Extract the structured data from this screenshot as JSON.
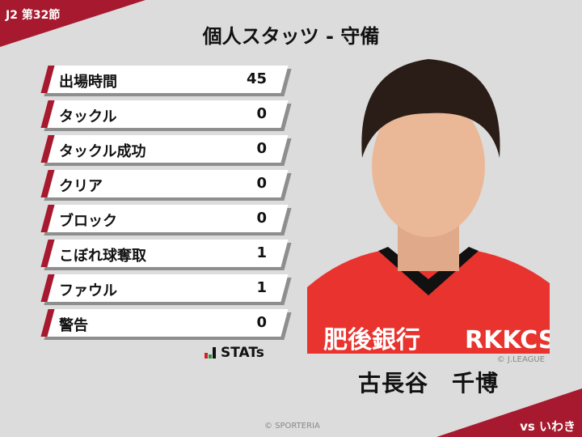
{
  "header": {
    "round": "J2 第32節",
    "title": "個人スタッツ - 守備"
  },
  "stats": [
    {
      "label": "出場時間",
      "value": "45"
    },
    {
      "label": "タックル",
      "value": "0"
    },
    {
      "label": "タックル成功",
      "value": "0"
    },
    {
      "label": "クリア",
      "value": "0"
    },
    {
      "label": "ブロック",
      "value": "0"
    },
    {
      "label": "こぼれ球奪取",
      "value": "1"
    },
    {
      "label": "ファウル",
      "value": "1"
    },
    {
      "label": "警告",
      "value": "0"
    }
  ],
  "brand": {
    "logo_text": "STATs",
    "accent": "#a6192e"
  },
  "player": {
    "name": "古長谷　千博",
    "photo_credit": "© J.LEAGUE",
    "shirt_sponsor": "肥後銀行",
    "shirt_sponsor2": "RKKCS"
  },
  "footer": {
    "copyright": "© SPORTERIA",
    "opponent": "vs いわき"
  }
}
